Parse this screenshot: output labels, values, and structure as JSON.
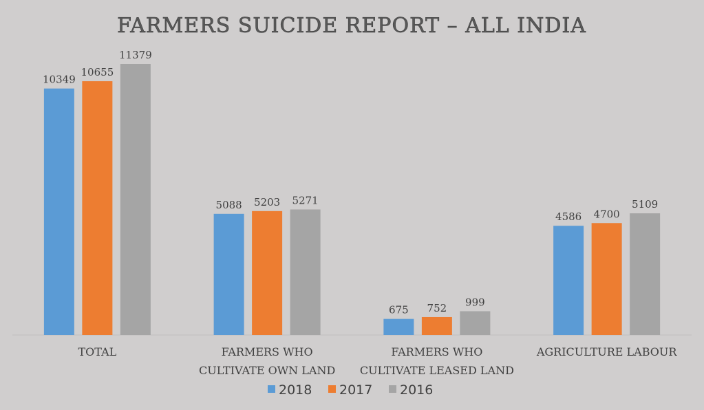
{
  "chart_data": {
    "type": "bar",
    "title": "FARMERS SUICIDE REPORT – ALL INDIA",
    "xlabel": "",
    "ylabel": "",
    "categories": [
      [
        "TOTAL"
      ],
      [
        "FARMERS WHO",
        "CULTIVATE OWN LAND"
      ],
      [
        "FARMERS WHO",
        "CULTIVATE LEASED LAND"
      ],
      [
        "AGRICULTURE LABOUR"
      ]
    ],
    "series": [
      {
        "name": "2018",
        "color": "#5b9bd5",
        "values": [
          10349,
          5088,
          675,
          4586
        ]
      },
      {
        "name": "2017",
        "color": "#ed7d31",
        "values": [
          10655,
          5203,
          752,
          4700
        ]
      },
      {
        "name": "2016",
        "color": "#a5a5a5",
        "values": [
          11379,
          5271,
          999,
          5109
        ]
      }
    ],
    "ylim": [
      0,
      11379
    ],
    "grid": false,
    "legend_position": "bottom",
    "data_labels": true
  }
}
